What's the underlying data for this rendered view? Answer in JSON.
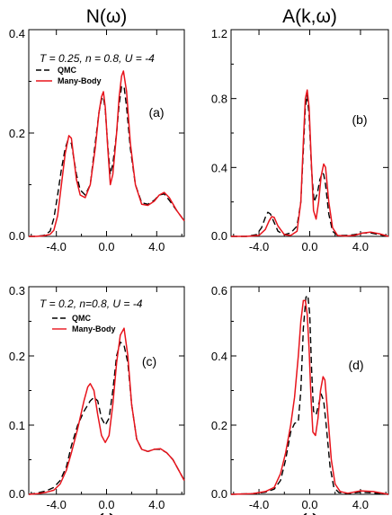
{
  "colors": {
    "qmc": "#000000",
    "many_body": "#e8141c"
  },
  "chart_data": [
    {
      "id": "a",
      "type": "line",
      "title": "N(ω)",
      "xlabel": "",
      "ylabel": "",
      "panel_label": "(a)",
      "annotation": "T = 0.25, n = 0.8, U = -4",
      "legend": [
        "QMC",
        "Many-Body"
      ],
      "legend_position": "top-left",
      "xlim": [
        -6.2,
        6.2
      ],
      "ylim": [
        0,
        0.4
      ],
      "xticks": [
        -4,
        0,
        4
      ],
      "xtick_labels": [
        "-4.0",
        "0.0",
        "4.0"
      ],
      "yticks": [
        0,
        0.2,
        0.4
      ],
      "ytick_labels": [
        "0.0",
        "0.2",
        "0.4"
      ],
      "series": [
        {
          "name": "QMC",
          "style": "dashed",
          "x": [
            -6.2,
            -5.6,
            -5.0,
            -4.5,
            -4.2,
            -3.9,
            -3.6,
            -3.3,
            -3.1,
            -2.8,
            -2.6,
            -2.4,
            -2.1,
            -1.7,
            -1.3,
            -0.9,
            -0.6,
            -0.4,
            -0.25,
            -0.1,
            0.1,
            0.3,
            0.5,
            0.8,
            1.0,
            1.2,
            1.4,
            1.6,
            1.9,
            2.3,
            2.8,
            3.3,
            3.8,
            4.2,
            4.6,
            5.0,
            5.6,
            6.2
          ],
          "y": [
            0.0,
            0.0,
            0.002,
            0.01,
            0.035,
            0.08,
            0.13,
            0.17,
            0.185,
            0.18,
            0.15,
            0.12,
            0.09,
            0.08,
            0.1,
            0.18,
            0.24,
            0.265,
            0.27,
            0.245,
            0.175,
            0.12,
            0.14,
            0.2,
            0.255,
            0.29,
            0.29,
            0.25,
            0.17,
            0.1,
            0.065,
            0.062,
            0.07,
            0.08,
            0.082,
            0.07,
            0.05,
            0.03
          ]
        },
        {
          "name": "Many-Body",
          "style": "solid",
          "x": [
            -6.2,
            -5.6,
            -5.0,
            -4.5,
            -4.2,
            -3.9,
            -3.6,
            -3.3,
            -3.0,
            -2.8,
            -2.6,
            -2.4,
            -2.1,
            -1.7,
            -1.3,
            -0.9,
            -0.6,
            -0.4,
            -0.25,
            -0.1,
            0.1,
            0.3,
            0.5,
            0.8,
            1.0,
            1.2,
            1.35,
            1.6,
            1.9,
            2.3,
            2.8,
            3.3,
            3.8,
            4.2,
            4.6,
            5.0,
            5.6,
            6.2
          ],
          "y": [
            0.0,
            0.0,
            0.001,
            0.004,
            0.012,
            0.04,
            0.1,
            0.16,
            0.195,
            0.19,
            0.15,
            0.11,
            0.08,
            0.075,
            0.1,
            0.17,
            0.24,
            0.27,
            0.28,
            0.25,
            0.17,
            0.1,
            0.12,
            0.2,
            0.27,
            0.31,
            0.32,
            0.28,
            0.18,
            0.1,
            0.062,
            0.06,
            0.068,
            0.08,
            0.085,
            0.075,
            0.05,
            0.03
          ]
        }
      ]
    },
    {
      "id": "b",
      "type": "line",
      "title": "A(k,ω)",
      "xlabel": "",
      "ylabel": "",
      "panel_label": "(b)",
      "xlim": [
        -6.2,
        6.2
      ],
      "ylim": [
        0,
        1.2
      ],
      "xticks": [
        -4,
        0,
        4
      ],
      "xtick_labels": [
        "-4.0",
        "0.0",
        "4.0"
      ],
      "yticks": [
        0,
        0.4,
        0.8,
        1.2
      ],
      "ytick_labels": [
        "0.0",
        "0.4",
        "0.8",
        "1.2"
      ],
      "series": [
        {
          "name": "QMC",
          "style": "dashed",
          "x": [
            -6.2,
            -5.0,
            -4.2,
            -3.8,
            -3.5,
            -3.3,
            -3.1,
            -2.8,
            -2.5,
            -2.0,
            -1.5,
            -1.0,
            -0.7,
            -0.5,
            -0.35,
            -0.2,
            -0.05,
            0.15,
            0.35,
            0.6,
            0.8,
            1.0,
            1.1,
            1.25,
            1.5,
            1.8,
            2.2,
            2.8,
            3.5,
            4.2,
            4.8,
            5.5,
            6.2
          ],
          "y": [
            0.0,
            0.0,
            0.01,
            0.05,
            0.11,
            0.14,
            0.13,
            0.08,
            0.03,
            0.01,
            0.02,
            0.06,
            0.2,
            0.5,
            0.75,
            0.82,
            0.7,
            0.38,
            0.2,
            0.25,
            0.33,
            0.37,
            0.36,
            0.3,
            0.13,
            0.03,
            0.005,
            0.005,
            0.01,
            0.02,
            0.02,
            0.01,
            0.0
          ]
        },
        {
          "name": "Many-Body",
          "style": "solid",
          "x": [
            -6.2,
            -5.0,
            -4.0,
            -3.5,
            -3.2,
            -3.0,
            -2.8,
            -2.5,
            -2.0,
            -1.5,
            -1.0,
            -0.7,
            -0.5,
            -0.35,
            -0.2,
            -0.05,
            0.1,
            0.3,
            0.5,
            0.7,
            0.9,
            1.1,
            1.25,
            1.5,
            1.8,
            2.2,
            2.8,
            3.5,
            4.2,
            4.8,
            5.5,
            6.2
          ],
          "y": [
            0.0,
            0.0,
            0.005,
            0.04,
            0.09,
            0.115,
            0.11,
            0.06,
            0.01,
            0.005,
            0.03,
            0.2,
            0.55,
            0.8,
            0.85,
            0.75,
            0.48,
            0.15,
            0.1,
            0.2,
            0.35,
            0.42,
            0.4,
            0.2,
            0.05,
            0.005,
            0.002,
            0.005,
            0.02,
            0.025,
            0.015,
            0.0
          ]
        }
      ]
    },
    {
      "id": "c",
      "type": "line",
      "title": "",
      "xlabel": "ω",
      "ylabel": "",
      "panel_label": "(c)",
      "annotation": "T = 0.2, n=0.8, U = -4",
      "legend": [
        "QMC",
        "Many-Body"
      ],
      "legend_position": "top-left",
      "xlim": [
        -6.2,
        6.2
      ],
      "ylim": [
        0,
        0.3
      ],
      "xticks": [
        -4,
        0,
        4
      ],
      "xtick_labels": [
        "-4.0",
        "0.0",
        "4.0"
      ],
      "yticks": [
        0,
        0.1,
        0.2,
        0.3
      ],
      "ytick_labels": [
        "0.0",
        "0.1",
        "0.2",
        "0.3"
      ],
      "series": [
        {
          "name": "QMC",
          "style": "dashed",
          "x": [
            -6.2,
            -5.5,
            -4.8,
            -4.2,
            -3.7,
            -3.2,
            -2.8,
            -2.3,
            -1.8,
            -1.3,
            -1.0,
            -0.7,
            -0.4,
            -0.1,
            0.2,
            0.5,
            0.8,
            1.1,
            1.4,
            1.7,
            2.0,
            2.4,
            2.8,
            3.3,
            3.8,
            4.3,
            4.8,
            5.3,
            6.2
          ],
          "y": [
            0.0,
            0.002,
            0.005,
            0.01,
            0.02,
            0.04,
            0.07,
            0.1,
            0.12,
            0.135,
            0.14,
            0.135,
            0.11,
            0.1,
            0.11,
            0.15,
            0.2,
            0.22,
            0.215,
            0.19,
            0.13,
            0.08,
            0.065,
            0.062,
            0.065,
            0.065,
            0.06,
            0.05,
            0.02
          ]
        },
        {
          "name": "Many-Body",
          "style": "solid",
          "x": [
            -6.2,
            -5.5,
            -4.8,
            -4.2,
            -3.7,
            -3.2,
            -2.8,
            -2.3,
            -1.8,
            -1.5,
            -1.3,
            -1.0,
            -0.7,
            -0.4,
            -0.1,
            0.2,
            0.5,
            0.8,
            1.1,
            1.4,
            1.7,
            2.0,
            2.4,
            2.8,
            3.3,
            3.8,
            4.3,
            4.8,
            5.3,
            6.2
          ],
          "y": [
            0.0,
            0.001,
            0.003,
            0.006,
            0.015,
            0.035,
            0.06,
            0.095,
            0.135,
            0.155,
            0.16,
            0.15,
            0.115,
            0.085,
            0.075,
            0.085,
            0.13,
            0.19,
            0.23,
            0.24,
            0.2,
            0.13,
            0.08,
            0.065,
            0.062,
            0.065,
            0.066,
            0.06,
            0.05,
            0.02
          ]
        }
      ]
    },
    {
      "id": "d",
      "type": "line",
      "title": "",
      "xlabel": "ω",
      "ylabel": "",
      "panel_label": "(d)",
      "xlim": [
        -6.2,
        6.2
      ],
      "ylim": [
        0,
        0.6
      ],
      "xticks": [
        -4,
        0,
        4
      ],
      "xtick_labels": [
        "-4.0",
        "0.0",
        "4.0"
      ],
      "yticks": [
        0,
        0.2,
        0.4,
        0.6
      ],
      "ytick_labels": [
        "0.0",
        "0.2",
        "0.4",
        "0.6"
      ],
      "series": [
        {
          "name": "QMC",
          "style": "dashed",
          "x": [
            -6.2,
            -4.5,
            -3.5,
            -2.8,
            -2.3,
            -1.9,
            -1.5,
            -1.2,
            -0.9,
            -0.7,
            -0.5,
            -0.3,
            -0.15,
            0.0,
            0.15,
            0.3,
            0.5,
            0.7,
            0.9,
            1.1,
            1.3,
            1.6,
            1.9,
            2.3,
            3.0,
            4.0,
            5.0,
            6.2
          ],
          "y": [
            0.0,
            0.002,
            0.006,
            0.015,
            0.04,
            0.1,
            0.18,
            0.205,
            0.21,
            0.3,
            0.48,
            0.57,
            0.575,
            0.52,
            0.36,
            0.24,
            0.23,
            0.26,
            0.29,
            0.27,
            0.2,
            0.08,
            0.02,
            0.005,
            0.002,
            0.006,
            0.004,
            0.0
          ]
        },
        {
          "name": "Many-Body",
          "style": "solid",
          "x": [
            -6.2,
            -4.5,
            -3.5,
            -2.8,
            -2.3,
            -1.9,
            -1.5,
            -1.2,
            -0.9,
            -0.7,
            -0.5,
            -0.35,
            -0.2,
            -0.05,
            0.1,
            0.25,
            0.45,
            0.65,
            0.85,
            1.05,
            1.2,
            1.4,
            1.7,
            2.0,
            2.4,
            3.0,
            4.0,
            5.0,
            6.2
          ],
          "y": [
            0.0,
            0.002,
            0.008,
            0.02,
            0.06,
            0.12,
            0.2,
            0.28,
            0.4,
            0.5,
            0.56,
            0.56,
            0.52,
            0.42,
            0.28,
            0.18,
            0.17,
            0.22,
            0.3,
            0.34,
            0.33,
            0.24,
            0.1,
            0.03,
            0.008,
            0.003,
            0.01,
            0.008,
            0.0
          ]
        }
      ]
    }
  ]
}
